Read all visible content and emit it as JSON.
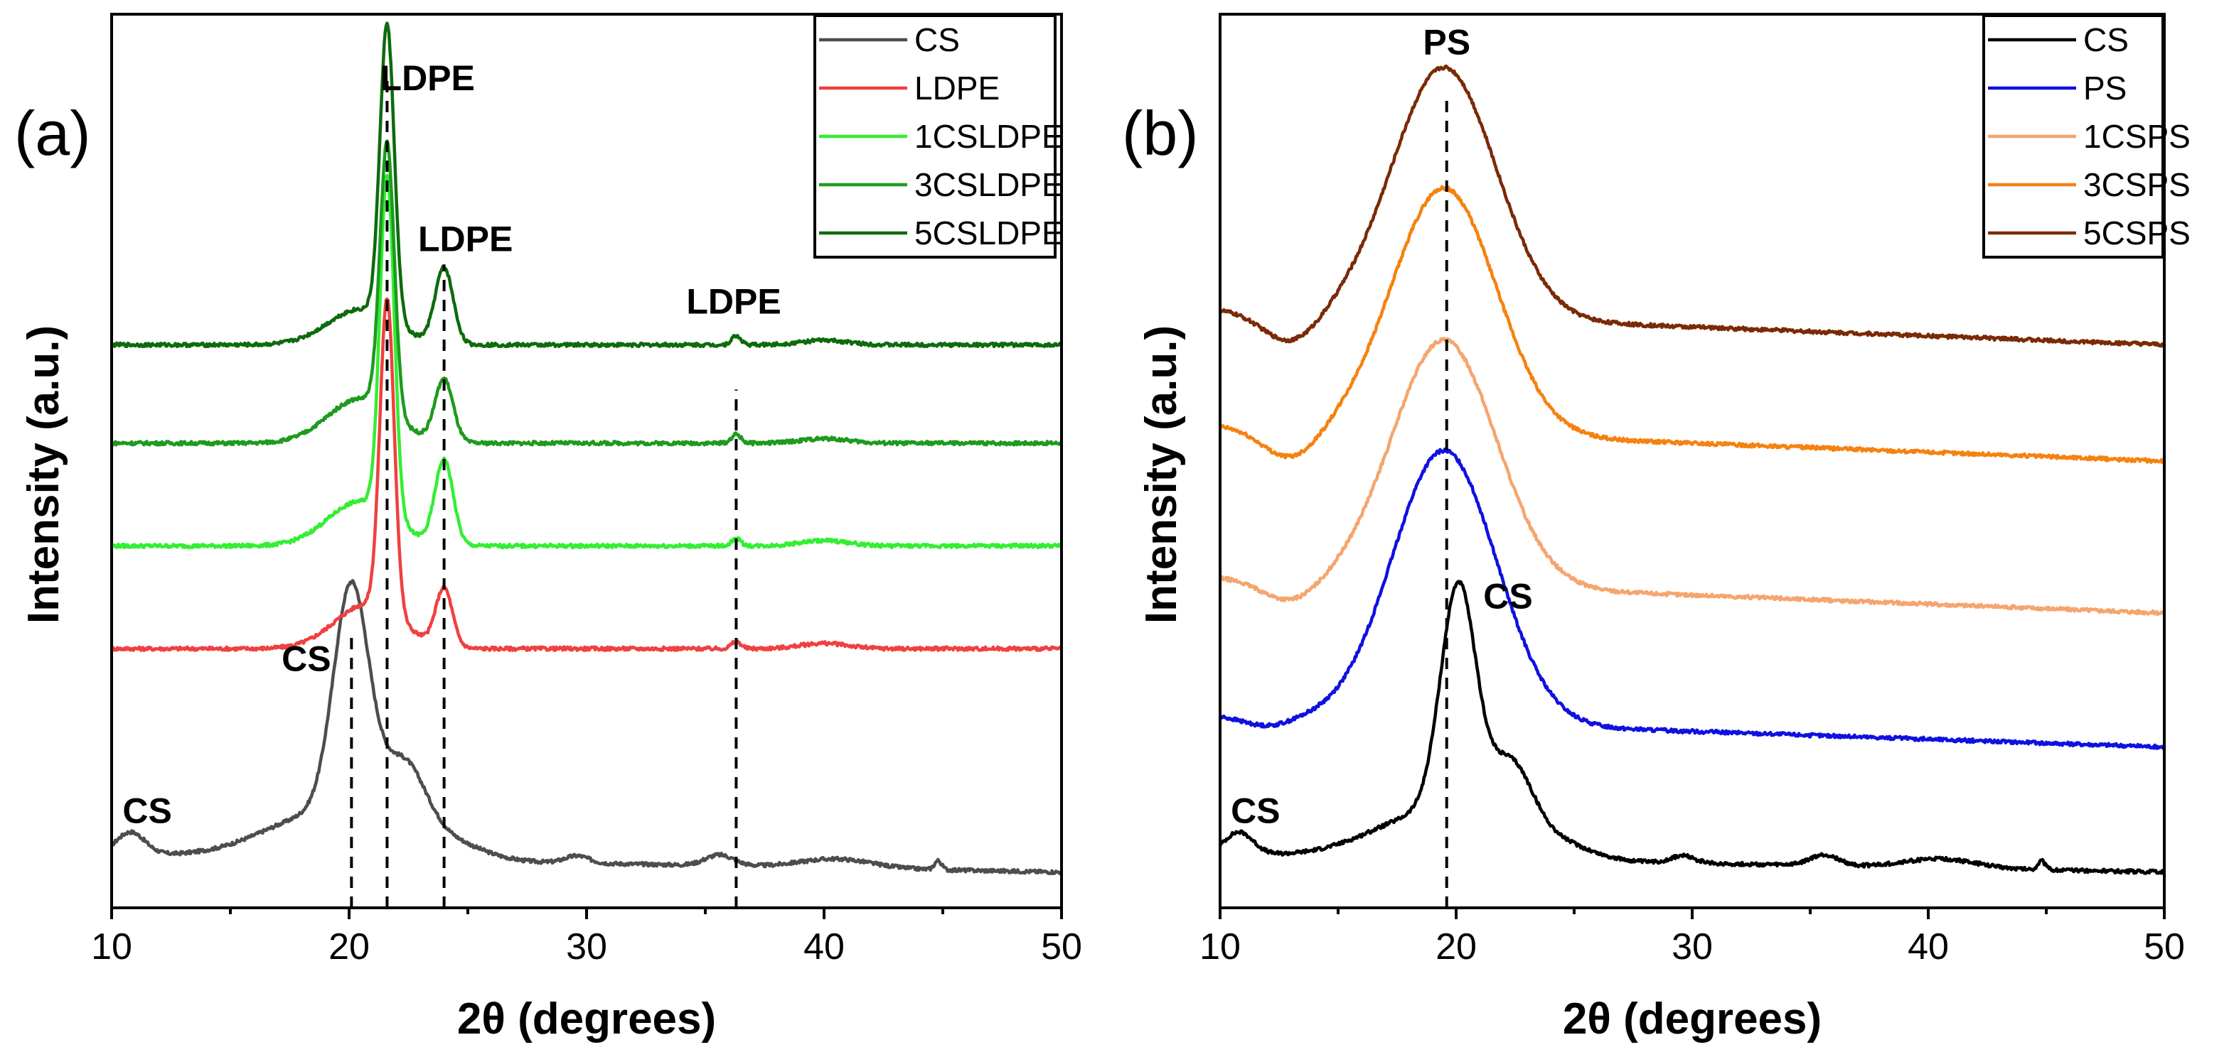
{
  "chart_data": [
    {
      "type": "line",
      "panel_label": "(a)",
      "xlabel": "2θ (degrees)",
      "ylabel": "Intensity (a.u.)",
      "xlim": [
        10,
        50
      ],
      "ylim": [
        0,
        1
      ],
      "x_ticks": [
        "10",
        "20",
        "30",
        "40",
        "50"
      ],
      "y_ticks_shown": false,
      "legend_position": "top-right",
      "series": [
        {
          "name": "CS",
          "color": "#4d4d4d",
          "offset": 0.03,
          "amorphous": 0.03,
          "tilt": -0.02,
          "peaks": [
            [
              10.8,
              0.025,
              0.6
            ],
            [
              20.1,
              0.26,
              0.75
            ],
            [
              22.3,
              0.08,
              0.9
            ],
            [
              19.0,
              0.05,
              2.5
            ],
            [
              24.0,
              0.02,
              1.5
            ],
            [
              29.6,
              0.008,
              0.5
            ],
            [
              35.6,
              0.012,
              0.6
            ],
            [
              40.5,
              0.01,
              1.5
            ],
            [
              44.8,
              0.01,
              0.15
            ]
          ]
        },
        {
          "name": "LDPE",
          "color": "#f04040",
          "offset": 0.29,
          "amorphous": 0.0,
          "tilt": 0.0,
          "peaks": [
            [
              21.6,
              0.35,
              0.3
            ],
            [
              20.8,
              0.05,
              1.4
            ],
            [
              24.0,
              0.065,
              0.35
            ],
            [
              36.3,
              0.008,
              0.2
            ],
            [
              40.0,
              0.006,
              1.0
            ]
          ]
        },
        {
          "name": "1CSLDPE",
          "color": "#33ee33",
          "offset": 0.405,
          "amorphous": 0.0,
          "tilt": 0.0,
          "peaks": [
            [
              21.6,
              0.38,
              0.3
            ],
            [
              20.5,
              0.05,
              1.4
            ],
            [
              24.0,
              0.095,
              0.38
            ],
            [
              36.3,
              0.008,
              0.2
            ],
            [
              40.0,
              0.006,
              1.0
            ]
          ]
        },
        {
          "name": "3CSLDPE",
          "color": "#1e9a1e",
          "offset": 0.52,
          "amorphous": 0.0,
          "tilt": 0.0,
          "peaks": [
            [
              21.6,
              0.3,
              0.3
            ],
            [
              20.5,
              0.05,
              1.4
            ],
            [
              24.0,
              0.07,
              0.38
            ],
            [
              36.3,
              0.01,
              0.2
            ],
            [
              40.0,
              0.005,
              1.0
            ]
          ]
        },
        {
          "name": "5CSLDPE",
          "color": "#0d6b0d",
          "offset": 0.63,
          "amorphous": 0.0,
          "tilt": 0.0,
          "peaks": [
            [
              21.6,
              0.33,
              0.3
            ],
            [
              20.5,
              0.04,
              1.4
            ],
            [
              24.0,
              0.085,
              0.38
            ],
            [
              36.3,
              0.01,
              0.2
            ],
            [
              40.0,
              0.005,
              1.0
            ]
          ]
        }
      ],
      "reference_lines": [
        20.1,
        21.6,
        24.0,
        36.3
      ],
      "annotations": [
        {
          "text": "LDPE",
          "x": 23.3,
          "y": 0.915
        },
        {
          "text": "LDPE",
          "x": 24.9,
          "y": 0.735
        },
        {
          "text": "LDPE",
          "x": 36.2,
          "y": 0.665
        },
        {
          "text": "CS",
          "x": 18.2,
          "y": 0.265
        },
        {
          "text": "CS",
          "x": 11.5,
          "y": 0.095
        }
      ]
    },
    {
      "type": "line",
      "panel_label": "(b)",
      "xlabel": "2θ (degrees)",
      "ylabel": "Intensity (a.u.)",
      "xlim": [
        10,
        50
      ],
      "ylim": [
        0,
        1
      ],
      "x_ticks": [
        "10",
        "20",
        "30",
        "40",
        "50"
      ],
      "y_ticks_shown": false,
      "legend_position": "top-right",
      "series": [
        {
          "name": "CS",
          "color": "#000000",
          "offset": 0.03,
          "amorphous": 0.03,
          "tilt": -0.02,
          "peaks": [
            [
              10.8,
              0.025,
              0.6
            ],
            [
              20.1,
              0.26,
              0.75
            ],
            [
              22.3,
              0.08,
              0.9
            ],
            [
              19.0,
              0.05,
              2.5
            ],
            [
              24.0,
              0.02,
              1.5
            ],
            [
              29.6,
              0.008,
              0.5
            ],
            [
              35.6,
              0.012,
              0.6
            ],
            [
              40.5,
              0.01,
              1.5
            ],
            [
              44.8,
              0.01,
              0.15
            ]
          ]
        },
        {
          "name": "PS",
          "color": "#1010e0",
          "offset": 0.17,
          "amorphous": 0.045,
          "tilt": -0.035,
          "peaks": [
            [
              19.5,
              0.305,
              2.2
            ],
            [
              12.0,
              -0.01,
              1.0
            ]
          ]
        },
        {
          "name": "1CSPS",
          "color": "#f5a56e",
          "offset": 0.32,
          "amorphous": 0.05,
          "tilt": -0.04,
          "peaks": [
            [
              19.5,
              0.275,
              2.2
            ],
            [
              13.0,
              -0.025,
              1.2
            ]
          ]
        },
        {
          "name": "3CSPS",
          "color": "#f58210",
          "offset": 0.49,
          "amorphous": 0.05,
          "tilt": -0.04,
          "peaks": [
            [
              19.5,
              0.275,
              2.2
            ],
            [
              13.0,
              -0.035,
              1.2
            ]
          ]
        },
        {
          "name": "5CSPS",
          "color": "#7a2a06",
          "offset": 0.62,
          "amorphous": 0.05,
          "tilt": -0.04,
          "peaks": [
            [
              19.5,
              0.28,
              2.2
            ],
            [
              13.0,
              -0.035,
              1.2
            ]
          ]
        }
      ],
      "reference_lines": [
        19.6
      ],
      "annotations": [
        {
          "text": "PS",
          "x": 19.6,
          "y": 0.955
        },
        {
          "text": "CS",
          "x": 22.2,
          "y": 0.335
        },
        {
          "text": "CS",
          "x": 11.5,
          "y": 0.095
        }
      ]
    }
  ]
}
